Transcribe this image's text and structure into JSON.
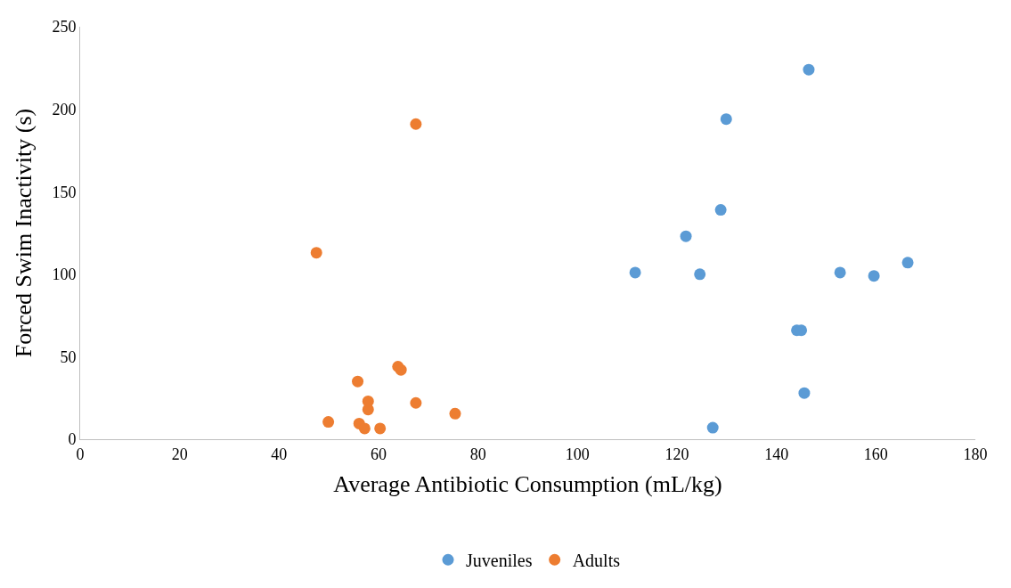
{
  "chart_data": {
    "type": "scatter",
    "xlabel": "Average Antibiotic Consumption (mL/kg)",
    "ylabel": "Forced Swim Inactivity (s)",
    "xlim": [
      0,
      180
    ],
    "xticks": [
      0,
      20,
      40,
      60,
      80,
      100,
      120,
      140,
      160,
      180
    ],
    "ylim": [
      0,
      250
    ],
    "yticks": [
      0,
      50,
      100,
      150,
      200,
      250
    ],
    "grid": false,
    "legend": "bottom",
    "marker": "circle",
    "series": [
      {
        "name": "Juveniles",
        "color": "#5b9bd5",
        "x": [
          146.5,
          129.9,
          128.8,
          121.8,
          111.6,
          124.6,
          152.8,
          159.6,
          166.4,
          144.1,
          145.0,
          145.6,
          127.2
        ],
        "values": [
          224,
          194,
          139,
          123,
          101,
          100,
          101,
          99,
          107,
          66,
          66,
          28,
          7
        ]
      },
      {
        "name": "Adults",
        "color": "#ed7d31",
        "x": [
          67.5,
          47.5,
          55.8,
          63.9,
          64.5,
          57.9,
          57.9,
          67.5,
          75.4,
          49.9,
          56.1,
          57.2,
          60.3
        ],
        "values": [
          191,
          113,
          35,
          44,
          42,
          23,
          18,
          22,
          15.5,
          10.5,
          9.5,
          6.5,
          6.5
        ]
      }
    ]
  }
}
